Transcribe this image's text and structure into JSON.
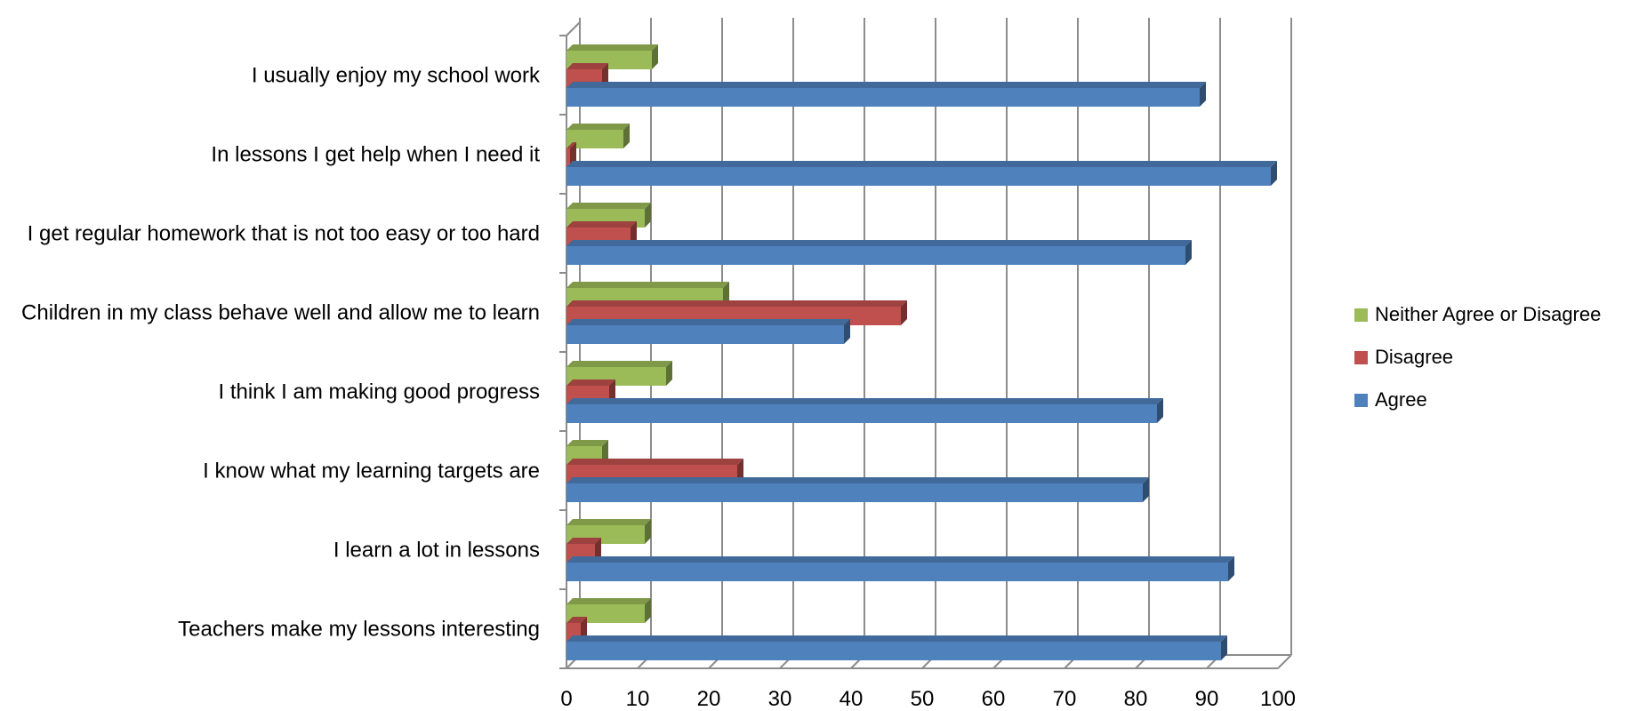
{
  "chart_data": {
    "type": "bar",
    "orientation": "horizontal",
    "three_d": true,
    "categories": [
      "I usually enjoy my school work",
      "In lessons I get help when I need it",
      "I get regular homework that is not too easy or too hard",
      "Children in my class behave well and allow me to learn",
      "I think I am making good progress",
      "I know what my learning targets are",
      "I learn a lot in lessons",
      "Teachers make my lessons interesting"
    ],
    "series": [
      {
        "name": "Agree",
        "color": "#4F81BD",
        "values": [
          89,
          99,
          87,
          39,
          83,
          81,
          93,
          92
        ]
      },
      {
        "name": "Disagree",
        "color": "#C0504D",
        "values": [
          5,
          0.5,
          9,
          47,
          6,
          24,
          4,
          2
        ]
      },
      {
        "name": "Neither Agree or Disagree",
        "color": "#9BBB59",
        "values": [
          12,
          8,
          11,
          22,
          14,
          5,
          11,
          11
        ]
      }
    ],
    "xlim": [
      0,
      100
    ],
    "x_ticks": [
      "0",
      "10",
      "20",
      "30",
      "40",
      "50",
      "60",
      "70",
      "80",
      "90",
      "100"
    ],
    "grid": true,
    "legend_position": "right",
    "legend_order": [
      "Neither Agree or Disagree",
      "Disagree",
      "Agree"
    ],
    "title": "",
    "xlabel": "",
    "ylabel": ""
  }
}
